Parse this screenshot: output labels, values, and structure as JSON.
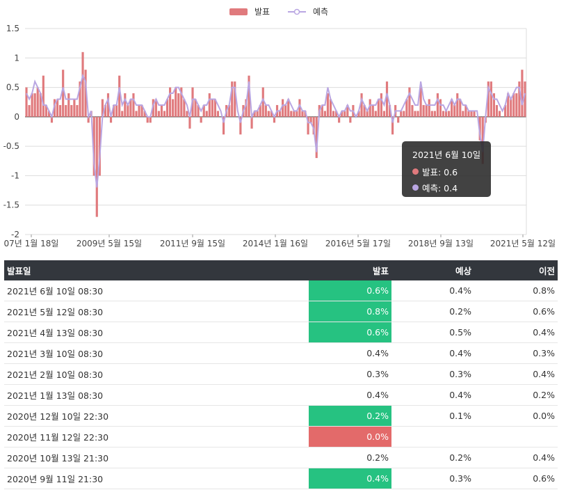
{
  "legend": {
    "actual_label": "발표",
    "forecast_label": "예측"
  },
  "colors": {
    "actual": "#e07a7d",
    "forecast": "#b9a6e2",
    "up": "#26c281",
    "down": "#e36a6a",
    "header_bg": "#33373d"
  },
  "tooltip": {
    "title": "2021년 6월 10일",
    "actual": "발표: 0.6",
    "forecast": "예측: 0.4"
  },
  "chart_data": {
    "type": "bar",
    "ylim": [
      -2,
      1.5
    ],
    "yticks": [
      "1.5",
      "1",
      "0.5",
      "0",
      "-0.5",
      "-1",
      "-1.5",
      "-2"
    ],
    "xticks": [
      "07년 1월 18일",
      "2009년 5월 15일",
      "2011년 9월 15일",
      "2014년 1월 16일",
      "2016년 5월 17일",
      "2018년 9월 13일",
      "2021년 5월 12일"
    ],
    "series": [
      {
        "name": "발표",
        "kind": "bar",
        "values": [
          0.5,
          0.2,
          0.4,
          0.4,
          0.5,
          0.4,
          0.7,
          0.2,
          0.1,
          -0.1,
          0.3,
          0.3,
          0.2,
          0.8,
          0.2,
          0.4,
          0.2,
          0.3,
          0.2,
          0.6,
          1.1,
          0.8,
          -0.1,
          0.1,
          -1.0,
          -1.7,
          -1.0,
          0.3,
          0.2,
          0.4,
          -0.1,
          0.2,
          0.2,
          0.7,
          0.1,
          0.4,
          0.2,
          0.3,
          0.4,
          0.1,
          0.2,
          0.2,
          0.1,
          -0.1,
          -0.1,
          0.3,
          0.3,
          0.1,
          0.2,
          0.1,
          0.3,
          0.5,
          0.3,
          0.5,
          0.4,
          0.5,
          0.3,
          0.1,
          -0.2,
          0.5,
          0.3,
          0.2,
          -0.1,
          0.2,
          0.1,
          0.4,
          0.3,
          0.3,
          0.1,
          0.0,
          -0.3,
          0.2,
          0.2,
          0.6,
          0.6,
          0.0,
          -0.3,
          0.2,
          0.3,
          0.7,
          -0.2,
          0.1,
          0.1,
          0.2,
          0.5,
          0.2,
          0.1,
          0.1,
          -0.1,
          0.2,
          0.1,
          0.3,
          0.2,
          0.3,
          0.1,
          0.1,
          0.1,
          0.3,
          0.1,
          0.1,
          -0.3,
          -0.1,
          -0.3,
          -0.7,
          0.2,
          0.2,
          0.1,
          0.4,
          0.3,
          0.1,
          0.1,
          -0.1,
          0.1,
          0.1,
          0.2,
          -0.1,
          0.2,
          0.0,
          0.1,
          0.4,
          0.2,
          0.1,
          0.3,
          0.2,
          0.1,
          0.3,
          0.4,
          0.1,
          0.6,
          0.2,
          -0.3,
          0.2,
          -0.1,
          0.1,
          0.1,
          0.3,
          0.5,
          0.2,
          0.1,
          0.1,
          0.5,
          0.2,
          0.2,
          0.3,
          0.1,
          0.1,
          0.4,
          0.3,
          0.1,
          0.1,
          0.1,
          0.3,
          0.2,
          0.4,
          0.3,
          0.1,
          0.2,
          0.1,
          0.1,
          0.1,
          0.0,
          -0.4,
          -0.8,
          -0.1,
          0.6,
          0.6,
          0.4,
          0.2,
          0.1,
          0.0,
          0.2,
          0.4,
          0.3,
          0.4,
          0.4,
          0.6,
          0.8,
          0.6
        ]
      },
      {
        "name": "예측",
        "kind": "line",
        "values": [
          0.4,
          0.3,
          0.4,
          0.6,
          0.5,
          0.4,
          0.2,
          0.2,
          0.1,
          0.0,
          0.2,
          0.3,
          0.3,
          0.5,
          0.3,
          0.3,
          0.3,
          0.3,
          0.3,
          0.5,
          0.7,
          0.6,
          0.0,
          0.1,
          -0.8,
          -1.2,
          -0.7,
          0.0,
          0.2,
          0.3,
          0.0,
          0.2,
          0.2,
          0.5,
          0.2,
          0.3,
          0.2,
          0.3,
          0.3,
          0.2,
          0.2,
          0.2,
          0.1,
          0.0,
          0.0,
          0.2,
          0.3,
          0.2,
          0.2,
          0.2,
          0.3,
          0.4,
          0.4,
          0.5,
          0.5,
          0.4,
          0.3,
          0.2,
          0.0,
          0.3,
          0.3,
          0.2,
          0.1,
          0.2,
          0.2,
          0.3,
          0.3,
          0.3,
          0.2,
          0.1,
          -0.1,
          0.1,
          0.2,
          0.5,
          0.5,
          0.1,
          -0.1,
          0.1,
          0.2,
          0.6,
          0.0,
          0.1,
          0.1,
          0.2,
          0.3,
          0.2,
          0.2,
          0.1,
          0.0,
          0.1,
          0.1,
          0.2,
          0.2,
          0.3,
          0.2,
          0.1,
          0.1,
          0.2,
          0.1,
          0.1,
          -0.1,
          -0.1,
          -0.2,
          -0.6,
          0.1,
          0.2,
          0.2,
          0.5,
          0.3,
          0.2,
          0.1,
          0.0,
          0.1,
          0.1,
          0.2,
          0.1,
          0.1,
          0.0,
          0.1,
          0.3,
          0.2,
          0.1,
          0.2,
          0.2,
          0.2,
          0.3,
          0.3,
          0.2,
          0.4,
          0.2,
          -0.1,
          0.1,
          0.1,
          0.1,
          0.2,
          0.3,
          0.4,
          0.3,
          0.2,
          0.2,
          0.6,
          0.3,
          0.2,
          0.2,
          0.2,
          0.2,
          0.3,
          0.2,
          0.2,
          0.1,
          0.2,
          0.3,
          0.2,
          0.3,
          0.3,
          0.2,
          0.2,
          0.1,
          0.1,
          0.1,
          0.1,
          -0.3,
          -0.6,
          0.0,
          0.5,
          0.4,
          0.3,
          0.3,
          0.2,
          0.1,
          0.2,
          0.4,
          0.3,
          0.4,
          0.5,
          0.5,
          0.2,
          0.4
        ]
      }
    ]
  },
  "table": {
    "headers": [
      "발표일",
      "발표",
      "예상",
      "이전"
    ],
    "rows": [
      {
        "date": "2021년 6월 10일 08:30",
        "actual": "0.6%",
        "forecast": "0.4%",
        "previous": "0.8%",
        "status": "up"
      },
      {
        "date": "2021년 5월 12일 08:30",
        "actual": "0.8%",
        "forecast": "0.2%",
        "previous": "0.6%",
        "status": "up"
      },
      {
        "date": "2021년 4월 13일 08:30",
        "actual": "0.6%",
        "forecast": "0.5%",
        "previous": "0.4%",
        "status": "up"
      },
      {
        "date": "2021년 3월 10일 08:30",
        "actual": "0.4%",
        "forecast": "0.4%",
        "previous": "0.3%",
        "status": ""
      },
      {
        "date": "2021년 2월 10일 08:30",
        "actual": "0.3%",
        "forecast": "0.3%",
        "previous": "0.4%",
        "status": ""
      },
      {
        "date": "2021년 1월 13일 08:30",
        "actual": "0.4%",
        "forecast": "0.4%",
        "previous": "0.2%",
        "status": ""
      },
      {
        "date": "2020년 12월 10일 22:30",
        "actual": "0.2%",
        "forecast": "0.1%",
        "previous": "0.0%",
        "status": "up"
      },
      {
        "date": "2020년 11월 12일 22:30",
        "actual": "0.0%",
        "forecast": "",
        "previous": "",
        "status": "down"
      },
      {
        "date": "2020년 10월 13일 21:30",
        "actual": "0.2%",
        "forecast": "0.2%",
        "previous": "0.4%",
        "status": ""
      },
      {
        "date": "2020년 9월 11일 21:30",
        "actual": "0.4%",
        "forecast": "0.3%",
        "previous": "0.6%",
        "status": "up"
      }
    ]
  }
}
